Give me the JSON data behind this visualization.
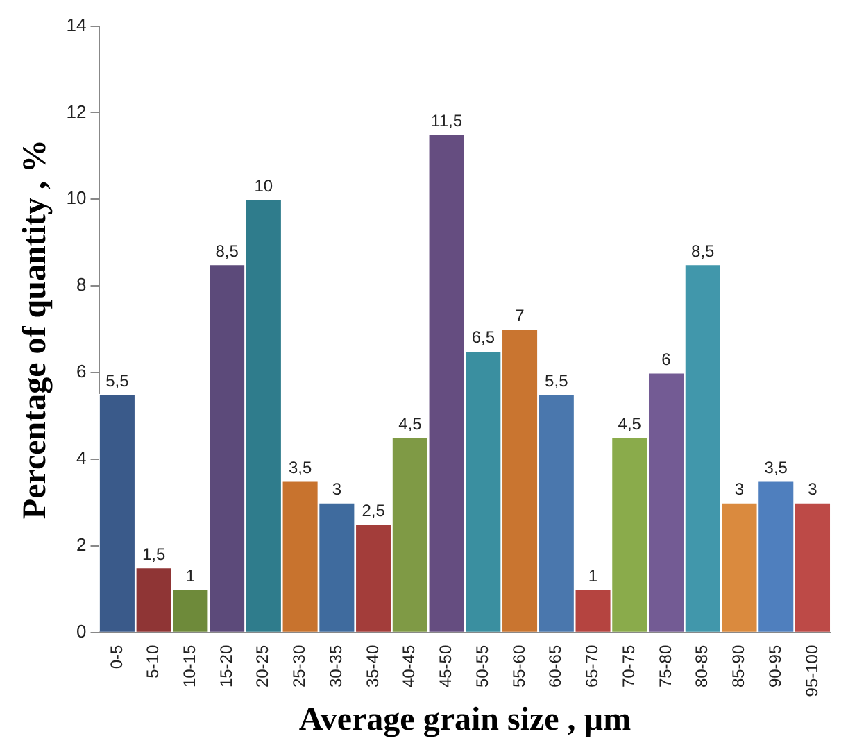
{
  "chart_data": {
    "type": "bar",
    "xlabel": "Average grain size , µm",
    "ylabel": "Percentage of quantity , %",
    "categories": [
      "0-5",
      "5-10",
      "10-15",
      "15-20",
      "20-25",
      "25-30",
      "30-35",
      "35-40",
      "40-45",
      "45-50",
      "50-55",
      "55-60",
      "60-65",
      "65-70",
      "70-75",
      "75-80",
      "80-85",
      "85-90",
      "90-95",
      "95-100"
    ],
    "values": [
      5.5,
      1.5,
      1,
      8.5,
      10,
      3.5,
      3,
      2.5,
      4.5,
      11.5,
      6.5,
      7,
      5.5,
      1,
      4.5,
      6,
      8.5,
      3,
      3.5,
      3
    ],
    "value_labels": [
      "5,5",
      "1,5",
      "1",
      "8,5",
      "10",
      "3,5",
      "3",
      "2,5",
      "4,5",
      "11,5",
      "6,5",
      "7",
      "5,5",
      "1",
      "4,5",
      "6",
      "8,5",
      "3",
      "3,5",
      "3"
    ],
    "colors": [
      "#3a5a8a",
      "#8f3535",
      "#6e8a3a",
      "#5c4a7a",
      "#2f7c8c",
      "#c8732e",
      "#3f6b9e",
      "#a33d3a",
      "#7f9a45",
      "#654d80",
      "#3a8fa0",
      "#c97530",
      "#4a77ad",
      "#b54440",
      "#8aab4b",
      "#735b94",
      "#4197ab",
      "#da8a3e",
      "#4f7fbe",
      "#bd4a47"
    ],
    "ylim": [
      0,
      14
    ],
    "yticks": [
      0,
      2,
      4,
      6,
      8,
      10,
      12,
      14
    ]
  }
}
